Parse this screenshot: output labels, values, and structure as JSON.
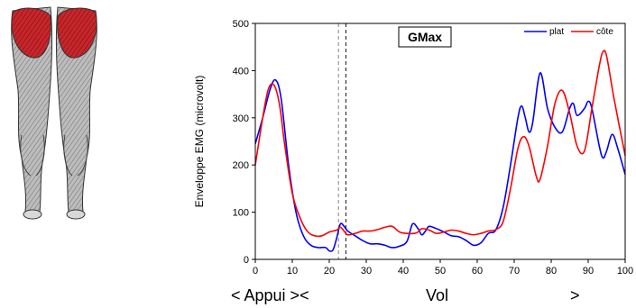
{
  "colors": {
    "plat": "#0000ff",
    "cote": "#ff0000",
    "muscle": "#c8262c"
  },
  "anatomy": {
    "icon": "leg-muscles-illustration-icon"
  },
  "chart_data": {
    "type": "line",
    "title": "GMax",
    "ylabel": "Enveloppe EMG (microvolt)",
    "xlabel": "",
    "xlim": [
      0,
      100
    ],
    "ylim": [
      0,
      500
    ],
    "xticks": [
      "0",
      "10",
      "20",
      "30",
      "40",
      "50",
      "60",
      "70",
      "80",
      "90",
      "100"
    ],
    "yticks": [
      "0",
      "100",
      "200",
      "300",
      "400",
      "500"
    ],
    "legend_position": "top-right",
    "grid": false,
    "markers": [
      {
        "x": 22.5,
        "style": "dashed",
        "color": "#999999"
      },
      {
        "x": 24.5,
        "style": "dashed",
        "color": "#333333"
      }
    ],
    "phase_labels": {
      "appui": "< Appui ><",
      "vol": "Vol",
      "end": ">"
    },
    "series": [
      {
        "name": "plat",
        "color": "#0000ff",
        "x": [
          0,
          2,
          4,
          5.5,
          7,
          9,
          11,
          13,
          15,
          17,
          19,
          20,
          21,
          22,
          23,
          24,
          25,
          27,
          29,
          31,
          33,
          35,
          37,
          39,
          41,
          42.5,
          44,
          45,
          46,
          47,
          49,
          51,
          53,
          55,
          57,
          59,
          61,
          63,
          65,
          67,
          69,
          71,
          72,
          73,
          74,
          75,
          77,
          79,
          81,
          83,
          85,
          86,
          87,
          89,
          90,
          91,
          93,
          94,
          95,
          96.5,
          98,
          100
        ],
        "y": [
          245,
          300,
          360,
          380,
          340,
          200,
          100,
          50,
          30,
          25,
          25,
          18,
          20,
          45,
          75,
          70,
          60,
          50,
          40,
          33,
          33,
          30,
          25,
          28,
          38,
          75,
          65,
          52,
          60,
          70,
          65,
          58,
          50,
          48,
          40,
          30,
          35,
          55,
          62,
          110,
          200,
          300,
          325,
          300,
          270,
          290,
          395,
          320,
          280,
          270,
          320,
          330,
          305,
          320,
          335,
          320,
          240,
          215,
          230,
          265,
          235,
          180
        ]
      },
      {
        "name": "côte",
        "color": "#ff0000",
        "x": [
          0,
          2,
          3.5,
          5,
          6.5,
          8,
          10,
          12,
          14,
          16,
          18,
          20,
          22,
          23,
          24,
          25,
          27,
          29,
          31,
          33,
          35,
          37,
          39,
          41,
          43,
          44,
          45,
          47,
          49,
          51,
          53,
          55,
          57,
          59,
          61,
          63,
          65,
          67,
          69,
          71,
          72.5,
          74,
          76,
          77,
          79,
          81,
          83,
          85,
          87,
          89,
          91,
          93,
          94,
          95,
          97,
          100
        ],
        "y": [
          200,
          300,
          360,
          370,
          330,
          240,
          140,
          90,
          60,
          50,
          50,
          58,
          62,
          68,
          60,
          52,
          55,
          60,
          60,
          63,
          68,
          70,
          58,
          55,
          55,
          58,
          65,
          62,
          55,
          58,
          62,
          60,
          55,
          52,
          55,
          60,
          63,
          80,
          150,
          235,
          260,
          240,
          175,
          170,
          240,
          330,
          358,
          310,
          240,
          230,
          320,
          410,
          440,
          430,
          340,
          220
        ]
      }
    ]
  }
}
